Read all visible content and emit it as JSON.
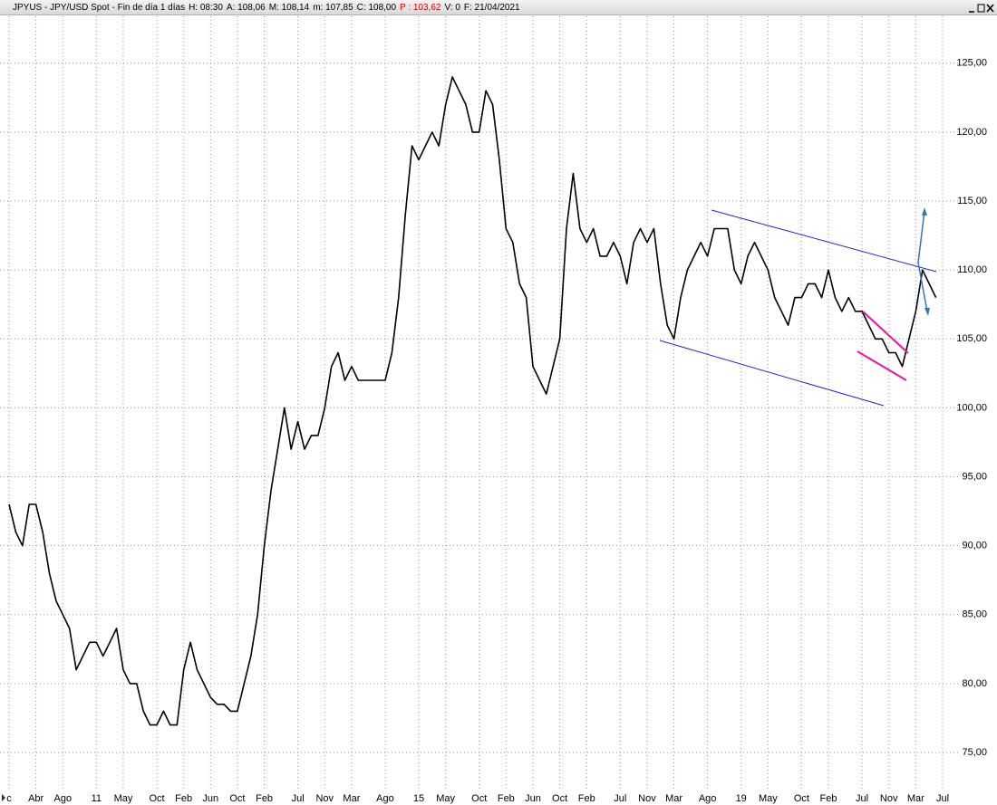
{
  "chart_data": {
    "type": "line",
    "title": "JPYUS - JPY/USD Spot - Fin de día 1 días",
    "header_fields": [
      "H: 08:30",
      "A: 108,06",
      "M: 108,14",
      "m: 107,85",
      "C: 108,00",
      "P : 103,62",
      "V: 0",
      "F: 21/04/2021"
    ],
    "color": "#000000",
    "x": [
      0,
      1,
      2,
      3,
      4,
      5,
      6,
      7,
      8,
      9,
      10,
      11,
      12,
      13,
      14,
      15,
      16,
      17,
      18,
      19,
      20,
      21,
      22,
      23,
      24,
      25,
      26,
      27,
      28,
      29,
      30,
      31,
      32,
      33,
      34,
      35,
      36,
      37,
      38,
      39,
      40,
      41,
      42,
      43,
      44,
      45,
      46,
      47,
      48,
      49,
      50,
      51,
      52,
      53,
      54,
      55,
      56,
      57,
      58,
      59,
      60,
      61,
      62,
      63,
      64,
      65,
      66,
      67,
      68,
      69,
      70,
      71,
      72,
      73,
      74,
      75,
      76,
      77,
      78,
      79,
      80,
      81,
      82,
      83,
      84,
      85,
      86,
      87,
      88,
      89,
      90,
      91,
      92,
      93,
      94,
      95,
      96,
      97,
      98,
      99,
      100,
      101,
      102,
      103,
      104,
      105,
      106,
      107,
      108,
      109,
      110,
      111,
      112,
      113,
      114,
      115,
      116,
      117,
      118,
      119,
      120,
      121,
      122,
      123,
      124,
      125,
      126,
      127,
      128,
      129,
      130,
      131,
      132,
      133,
      134,
      135,
      136,
      137,
      138
    ],
    "values": [
      93,
      91,
      90,
      93,
      93,
      91,
      88,
      86,
      85,
      84,
      81,
      82,
      83,
      83,
      82,
      83,
      84,
      81,
      80,
      80,
      78,
      77,
      77,
      78,
      77,
      77,
      81,
      83,
      81,
      80,
      79,
      78.5,
      78.5,
      78,
      78,
      80,
      82,
      85,
      90,
      94,
      97,
      100,
      97,
      99,
      97,
      98,
      98,
      100,
      103,
      104,
      102,
      103,
      102,
      102,
      102,
      102,
      102,
      104,
      108,
      114,
      119,
      118,
      119,
      120,
      119,
      122,
      124,
      123,
      122,
      120,
      120,
      123,
      122,
      118,
      113,
      112,
      109,
      108,
      103,
      102,
      101,
      103,
      105,
      113,
      117,
      113,
      112,
      113,
      111,
      111,
      112,
      111,
      109,
      112,
      113,
      112,
      113,
      109,
      106,
      105,
      108,
      110,
      111,
      112,
      111,
      113,
      113,
      113,
      110,
      109,
      111,
      112,
      111,
      110,
      108,
      107,
      106,
      108,
      108,
      109,
      109,
      108,
      110,
      108,
      107,
      108,
      107,
      107,
      106,
      105,
      105,
      104,
      104,
      103,
      105,
      107,
      110,
      109,
      108
    ],
    "xlim": [
      -1.35,
      141.7
    ],
    "ylim": [
      73.1,
      128.4
    ],
    "yticks": [
      {
        "value": 75,
        "label": "75,00"
      },
      {
        "value": 80,
        "label": "80,00"
      },
      {
        "value": 85,
        "label": "85,00"
      },
      {
        "value": 90,
        "label": "90,00"
      },
      {
        "value": 95,
        "label": "95,00"
      },
      {
        "value": 100,
        "label": "100,00"
      },
      {
        "value": 105,
        "label": "105,00"
      },
      {
        "value": 110,
        "label": "110,00"
      },
      {
        "value": 115,
        "label": "115,00"
      },
      {
        "value": 120,
        "label": "120,00"
      },
      {
        "value": 125,
        "label": "125,00"
      }
    ],
    "xticks": [
      {
        "value": 0,
        "label": "c"
      },
      {
        "value": 4,
        "label": "Abr"
      },
      {
        "value": 8,
        "label": "Ago"
      },
      {
        "value": 13,
        "label": "11"
      },
      {
        "value": 17,
        "label": "May"
      },
      {
        "value": 22,
        "label": "Oct"
      },
      {
        "value": 26,
        "label": "Feb"
      },
      {
        "value": 30,
        "label": "Jun"
      },
      {
        "value": 34,
        "label": "Oct"
      },
      {
        "value": 38,
        "label": "Feb"
      },
      {
        "value": 43,
        "label": "Jul"
      },
      {
        "value": 47,
        "label": "Nov"
      },
      {
        "value": 51,
        "label": "Mar"
      },
      {
        "value": 56,
        "label": "Ago"
      },
      {
        "value": 61,
        "label": "15"
      },
      {
        "value": 65,
        "label": "May"
      },
      {
        "value": 70,
        "label": "Oct"
      },
      {
        "value": 74,
        "label": "Feb"
      },
      {
        "value": 78,
        "label": "Jun"
      },
      {
        "value": 82,
        "label": "Oct"
      },
      {
        "value": 86,
        "label": "Feb"
      },
      {
        "value": 91,
        "label": "Jul"
      },
      {
        "value": 95,
        "label": "Nov"
      },
      {
        "value": 99,
        "label": "Mar"
      },
      {
        "value": 104,
        "label": "Ago"
      },
      {
        "value": 109,
        "label": "19"
      },
      {
        "value": 113,
        "label": "May"
      },
      {
        "value": 118,
        "label": "Oct"
      },
      {
        "value": 122,
        "label": "Feb"
      },
      {
        "value": 127,
        "label": "Jul"
      },
      {
        "value": 131,
        "label": "Nov"
      },
      {
        "value": 135,
        "label": "Mar"
      },
      {
        "value": 139,
        "label": "Jul"
      }
    ],
    "grid": true
  }
}
